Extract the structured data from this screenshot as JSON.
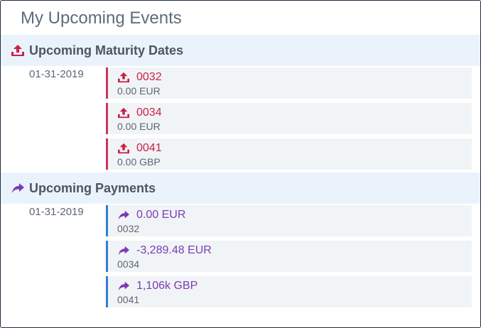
{
  "panel": {
    "title": "My Upcoming Events"
  },
  "colors": {
    "maturity_accent": "#cc1f45",
    "payment_accent": "#7a3bb5",
    "payment_border": "#2f7fd1",
    "header_bg": "#eaf3fb"
  },
  "maturity": {
    "icon": "upload-tray-icon",
    "header": "Upcoming Maturity Dates",
    "date": "01-31-2019",
    "items": [
      {
        "primary": "0032",
        "secondary": "0.00 EUR"
      },
      {
        "primary": "0034",
        "secondary": "0.00 EUR"
      },
      {
        "primary": "0041",
        "secondary": "0.00 GBP"
      }
    ]
  },
  "payments": {
    "icon": "share-arrow-icon",
    "header": "Upcoming Payments",
    "date": "01-31-2019",
    "items": [
      {
        "primary": "0.00 EUR",
        "secondary": "0032"
      },
      {
        "primary": "-3,289.48 EUR",
        "secondary": "0034"
      },
      {
        "primary": "1,106k GBP",
        "secondary": "0041"
      }
    ]
  }
}
